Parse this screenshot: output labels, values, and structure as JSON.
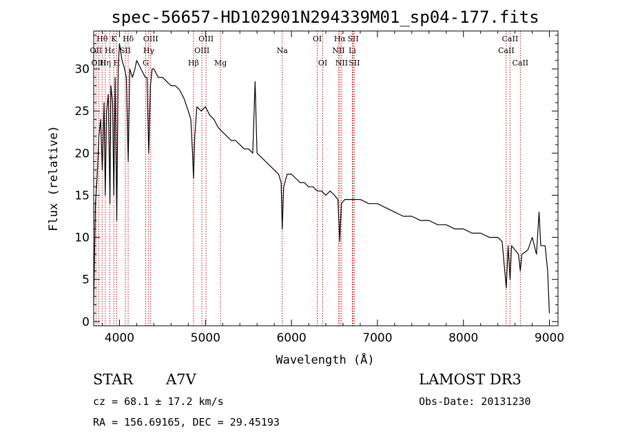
{
  "chart_data": {
    "type": "line",
    "title": "spec-56657-HD102901N294339M01_sp04-177.fits",
    "xlabel": "Wavelength (Å)",
    "ylabel": "Flux (relative)",
    "xlim": [
      3700,
      9100
    ],
    "ylim": [
      -0.5,
      34.5
    ],
    "x_ticks": [
      4000,
      5000,
      6000,
      7000,
      8000,
      9000
    ],
    "y_ticks": [
      0,
      5,
      10,
      15,
      20,
      25,
      30
    ],
    "series": [
      {
        "name": "spectrum",
        "color": "#000000",
        "x": [
          3700,
          3720,
          3740,
          3760,
          3780,
          3800,
          3820,
          3835,
          3850,
          3870,
          3889,
          3900,
          3920,
          3934,
          3950,
          3968,
          3985,
          4000,
          4030,
          4060,
          4080,
          4101,
          4120,
          4150,
          4180,
          4200,
          4250,
          4300,
          4320,
          4340,
          4360,
          4380,
          4400,
          4450,
          4500,
          4550,
          4600,
          4650,
          4700,
          4750,
          4800,
          4830,
          4850,
          4861,
          4875,
          4900,
          4950,
          5000,
          5050,
          5100,
          5150,
          5200,
          5250,
          5300,
          5350,
          5400,
          5450,
          5500,
          5550,
          5577,
          5600,
          5650,
          5700,
          5750,
          5800,
          5850,
          5880,
          5893,
          5910,
          5950,
          6000,
          6050,
          6100,
          6150,
          6200,
          6250,
          6300,
          6350,
          6400,
          6450,
          6500,
          6540,
          6563,
          6580,
          6620,
          6700,
          6800,
          6900,
          7000,
          7100,
          7200,
          7300,
          7400,
          7500,
          7600,
          7700,
          7800,
          7900,
          8000,
          8100,
          8200,
          8300,
          8400,
          8450,
          8498,
          8520,
          8542,
          8560,
          8600,
          8640,
          8662,
          8680,
          8750,
          8800,
          8850,
          8880,
          8900,
          8950,
          8980,
          9000
        ],
        "values": [
          2,
          14,
          17,
          22,
          24,
          18,
          26,
          15,
          25,
          27,
          14,
          28,
          26,
          15,
          29,
          12,
          30,
          33,
          31,
          30,
          29,
          19,
          30,
          29,
          30,
          31,
          30,
          29,
          29,
          20,
          28,
          30,
          30,
          29,
          29,
          28.5,
          28,
          28,
          27.5,
          26.5,
          25,
          24,
          20,
          17,
          22,
          25.5,
          25,
          25.5,
          24.5,
          24,
          23,
          22.5,
          22,
          21.5,
          21.5,
          21,
          20.5,
          20.5,
          20,
          28.5,
          20,
          19.5,
          19,
          18.5,
          18,
          17.5,
          16.5,
          11,
          16,
          17.5,
          17.5,
          17,
          16.5,
          16.5,
          16,
          16,
          15.5,
          15.5,
          15,
          15.5,
          15,
          14.5,
          9.5,
          14,
          14.5,
          14.5,
          14.5,
          14,
          14,
          13.5,
          13,
          12.5,
          12.5,
          12,
          12,
          11.5,
          11.5,
          11,
          11,
          10.5,
          10.5,
          10,
          10,
          9.5,
          4,
          9,
          5,
          9,
          8.5,
          8,
          6,
          8,
          8.5,
          10,
          8,
          13,
          9,
          9,
          6,
          1
        ]
      }
    ],
    "lines": [
      {
        "name": "Hθ",
        "wl": 3798,
        "row": 0
      },
      {
        "name": "OII",
        "wl": 3727,
        "row": 1
      },
      {
        "name": "OIII",
        "wl": 3760,
        "row": 2
      },
      {
        "name": "Hη",
        "wl": 3835,
        "row": 2
      },
      {
        "name": "Hε",
        "wl": 3889,
        "row": 1
      },
      {
        "name": "K",
        "wl": 3934,
        "row": 0
      },
      {
        "name": "H",
        "wl": 3968,
        "row": 2
      },
      {
        "name": "SII",
        "wl": 4068,
        "row": 1
      },
      {
        "name": "Hδ",
        "wl": 4101,
        "row": 0
      },
      {
        "name": "G",
        "wl": 4304,
        "row": 2
      },
      {
        "name": "OIII",
        "wl": 4363,
        "row": 0
      },
      {
        "name": "Hγ",
        "wl": 4340,
        "row": 1
      },
      {
        "name": "Hβ",
        "wl": 4861,
        "row": 2
      },
      {
        "name": "OIII",
        "wl": 5007,
        "row": 0
      },
      {
        "name": "OIII",
        "wl": 4959,
        "row": 1
      },
      {
        "name": "Mg",
        "wl": 5175,
        "row": 2
      },
      {
        "name": "Na",
        "wl": 5893,
        "row": 1
      },
      {
        "name": "OI",
        "wl": 6300,
        "row": 0
      },
      {
        "name": "OI",
        "wl": 6364,
        "row": 2
      },
      {
        "name": "Hα",
        "wl": 6563,
        "row": 0
      },
      {
        "name": "NII",
        "wl": 6548,
        "row": 1
      },
      {
        "name": "NII",
        "wl": 6584,
        "row": 2
      },
      {
        "name": "SII",
        "wl": 6717,
        "row": 0
      },
      {
        "name": "Li",
        "wl": 6708,
        "row": 1
      },
      {
        "name": "SII",
        "wl": 6731,
        "row": 2
      },
      {
        "name": "CaII",
        "wl": 8542,
        "row": 0
      },
      {
        "name": "CaII",
        "wl": 8498,
        "row": 1
      },
      {
        "name": "CaII",
        "wl": 8662,
        "row": 2
      }
    ],
    "line_color": "#cc0000"
  },
  "info": {
    "object_type": "STAR",
    "subclass": "A7V",
    "redshift": "cz = 68.1 ± 17.2 km/s",
    "coords": "RA = 156.69165, DEC =  29.45193",
    "survey": "LAMOST DR3",
    "obs_date": "Obs-Date: 20131230"
  }
}
